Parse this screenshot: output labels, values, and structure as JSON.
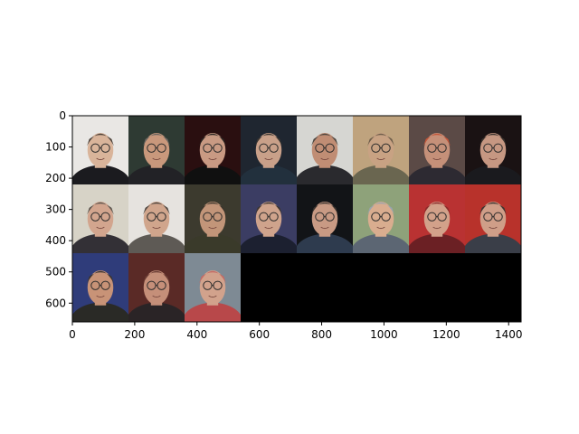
{
  "chart_data": {
    "type": "image-grid",
    "title": "",
    "xlabel": "",
    "ylabel": "",
    "xlim": [
      0,
      1440
    ],
    "ylim": [
      660,
      0
    ],
    "x_ticks": [
      0,
      200,
      400,
      600,
      800,
      1000,
      1200,
      1400
    ],
    "y_ticks": [
      0,
      100,
      200,
      300,
      400,
      500,
      600
    ],
    "grid": false,
    "tile_width": 180,
    "tile_height": 220,
    "columns": 8,
    "rows": 3,
    "filled_tiles": 19,
    "empty_fill": "#000000",
    "tiles": [
      {
        "row": 0,
        "col": 0,
        "bg": "#e9e7e4",
        "skin": "#d9b49a",
        "hair": "#4a4038",
        "shirt": "#1b1b1f"
      },
      {
        "row": 0,
        "col": 1,
        "bg": "#2e3a33",
        "skin": "#c9987c",
        "hair": "#6a6560",
        "shirt": "#222226"
      },
      {
        "row": 0,
        "col": 2,
        "bg": "#2a0f10",
        "skin": "#c99a83",
        "hair": "#2a2522",
        "shirt": "#101010"
      },
      {
        "row": 0,
        "col": 3,
        "bg": "#1f2630",
        "skin": "#c9a089",
        "hair": "#3c3732",
        "shirt": "#22303d"
      },
      {
        "row": 0,
        "col": 4,
        "bg": "#d6d6d2",
        "skin": "#c08d74",
        "hair": "#4c4640",
        "shirt": "#2a2a2e"
      },
      {
        "row": 0,
        "col": 5,
        "bg": "#bfa37e",
        "skin": "#c8a283",
        "hair": "#6e5d4a",
        "shirt": "#6a6650"
      },
      {
        "row": 0,
        "col": 6,
        "bg": "#5b4a46",
        "skin": "#c59079",
        "hair": "#c4563a",
        "shirt": "#2d2a32"
      },
      {
        "row": 0,
        "col": 7,
        "bg": "#1a1213",
        "skin": "#c69782",
        "hair": "#3a322d",
        "shirt": "#1a1a1e"
      },
      {
        "row": 1,
        "col": 0,
        "bg": "#d7d3c7",
        "skin": "#d2a58e",
        "hair": "#5b544d",
        "shirt": "#333036"
      },
      {
        "row": 1,
        "col": 1,
        "bg": "#e6e3df",
        "skin": "#d0a58c",
        "hair": "#4e4640",
        "shirt": "#5e5a55"
      },
      {
        "row": 1,
        "col": 2,
        "bg": "#3c3a2e",
        "skin": "#c29579",
        "hair": "#3b352c",
        "shirt": "#3a3a2a"
      },
      {
        "row": 1,
        "col": 3,
        "bg": "#3b3d63",
        "skin": "#cfa38c",
        "hair": "#3c3530",
        "shirt": "#1c2030"
      },
      {
        "row": 1,
        "col": 4,
        "bg": "#121417",
        "skin": "#c89a84",
        "hair": "#3c342f",
        "shirt": "#2e3b4e"
      },
      {
        "row": 1,
        "col": 5,
        "bg": "#8ea27a",
        "skin": "#d9ad8f",
        "hair": "#9aa4ae",
        "shirt": "#5c6673"
      },
      {
        "row": 1,
        "col": 6,
        "bg": "#b93232",
        "skin": "#d2a18a",
        "hair": "#8c2a2a",
        "shirt": "#6b2024"
      },
      {
        "row": 1,
        "col": 7,
        "bg": "#b8322b",
        "skin": "#cf9e88",
        "hair": "#3c3430",
        "shirt": "#3a3e48"
      },
      {
        "row": 2,
        "col": 0,
        "bg": "#2f3c7a",
        "skin": "#c89377",
        "hair": "#3a3430",
        "shirt": "#2a2a26"
      },
      {
        "row": 2,
        "col": 1,
        "bg": "#5a2a26",
        "skin": "#c58f79",
        "hair": "#6a3c34",
        "shirt": "#2a2426"
      },
      {
        "row": 2,
        "col": 2,
        "bg": "#7e8a94",
        "skin": "#d2a28c",
        "hair": "#c46a64",
        "shirt": "#b8484a"
      }
    ]
  }
}
